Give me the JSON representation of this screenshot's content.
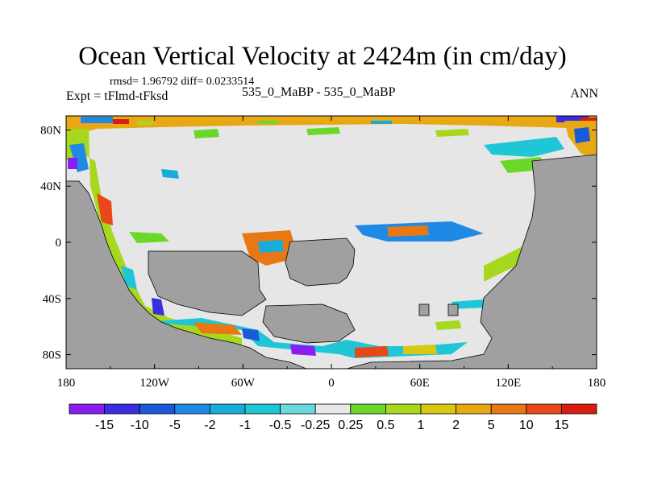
{
  "title": "Ocean Vertical Velocity at 2424m (in cm/day)",
  "stats": "rmsd= 1.96792 diff= 0.0233514",
  "experiment": "Expt = tFlmd-tFksd",
  "cases": "535_0_MaBP - 535_0_MaBP",
  "season": "ANN",
  "map": {
    "lon_ticks": [
      "180",
      "120W",
      "60W",
      "0",
      "60E",
      "120E",
      "180"
    ],
    "lat_ticks": [
      "80N",
      "40N",
      "0",
      "40S",
      "80S"
    ],
    "land_color": "#a0a0a0",
    "ocean_near_zero_color": "#e6e6e6"
  },
  "colorbar": {
    "levels": [
      "-15",
      "-10",
      "-5",
      "-2",
      "-1",
      "-0.5",
      "-0.25",
      "0.25",
      "0.5",
      "1",
      "2",
      "5",
      "10",
      "15"
    ],
    "colors": [
      "#8a1ef0",
      "#3a2ee0",
      "#1a5ad8",
      "#1e8ae6",
      "#18acd8",
      "#1ec6d6",
      "#6ad8dc",
      "#e8e8e8",
      "#6ad828",
      "#a8d81e",
      "#d8c814",
      "#e8a814",
      "#e87814",
      "#e84818",
      "#d81e10"
    ]
  }
}
